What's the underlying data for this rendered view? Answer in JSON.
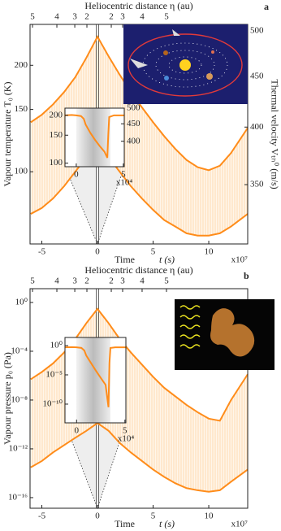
{
  "chart_data": [
    {
      "type": "line",
      "panel": "a",
      "x2label": "Heliocentric distance η (au)",
      "xlabel": "Time",
      "xlabel_unit": "t (s)",
      "xscale_label": "x10⁷",
      "ylabel": "Vapour temperature T₀ (K)",
      "y2label": "Thermal velocity Vₜₕ⁰ (m/s)",
      "xlim": [
        -6.06,
        13.5
      ],
      "xticks": [
        -5,
        0,
        5,
        10
      ],
      "x2ticks": [
        {
          "value": -5.84,
          "label": "5"
        },
        {
          "value": -3.65,
          "label": "4"
        },
        {
          "value": -2.04,
          "label": "3"
        },
        {
          "value": -0.95,
          "label": "2"
        },
        {
          "value": 1.24,
          "label": "2"
        },
        {
          "value": 2.26,
          "label": "3"
        },
        {
          "value": 4.01,
          "label": "4"
        },
        {
          "value": 6.2,
          "label": "5"
        }
      ],
      "ylog": true,
      "ylim": [
        62.5,
        261
      ],
      "yticks": [
        100,
        150,
        200
      ],
      "y2log": true,
      "y2lim": [
        305,
        507.6
      ],
      "y2ticks": [
        350,
        400,
        450,
        500
      ],
      "x": [
        -6,
        -5,
        -4,
        -3,
        -2,
        -1,
        0,
        1,
        2,
        3,
        4,
        5,
        6,
        7,
        8,
        9,
        10,
        11,
        12,
        13.5
      ],
      "series": [
        {
          "color": "#ff8c1a",
          "values": [
            138,
            145,
            155,
            168,
            185,
            210,
            241,
            212,
            188,
            168,
            152,
            138,
            126,
            116,
            108,
            103,
            101,
            104,
            113,
            133
          ]
        },
        {
          "color": "#ff8c1a",
          "values": [
            76,
            79,
            84,
            91,
            100,
            110,
            119,
            110,
            100,
            91,
            84,
            78,
            73,
            70,
            67,
            66,
            66,
            67,
            70,
            76
          ]
        }
      ]
    },
    {
      "type": "line",
      "inset": true,
      "xscale_label": "x10⁴",
      "xlim": [
        -1.2,
        5.1
      ],
      "xticks": [
        0,
        5
      ],
      "ylog": true,
      "ylim": [
        95,
        222
      ],
      "yticks": [
        100,
        150,
        200
      ],
      "y2log": true,
      "y2lim": [
        337,
        500
      ],
      "y2ticks": [
        400,
        450,
        500
      ],
      "x": [
        -1.2,
        -0.5,
        0,
        0.5,
        0.8,
        1,
        1.5,
        2,
        2.5,
        3,
        3.3,
        3.4,
        3.5,
        4,
        5.1
      ],
      "series": [
        {
          "color": "#ff8c1a",
          "values": [
            200,
            201,
            200,
            198,
            190,
            175,
            155,
            140,
            128,
            118,
            108,
            150,
            195,
            200,
            200
          ]
        }
      ]
    },
    {
      "type": "line",
      "panel": "b",
      "x2label": "Heliocentric distance η (au)",
      "xlabel": "Time",
      "xlabel_unit": "t (s)",
      "xscale_label": "x10⁷",
      "ylabel": "Vapour pressure p₀ (Pa)",
      "xlim": [
        -6.06,
        13.5
      ],
      "xticks": [
        -5,
        0,
        5,
        10
      ],
      "x2ticks": [
        {
          "value": -5.84,
          "label": "5"
        },
        {
          "value": -3.65,
          "label": "4"
        },
        {
          "value": -2.04,
          "label": "3"
        },
        {
          "value": -0.95,
          "label": "2"
        },
        {
          "value": 1.24,
          "label": "2"
        },
        {
          "value": 2.26,
          "label": "3"
        },
        {
          "value": 4.01,
          "label": "4"
        },
        {
          "value": 6.2,
          "label": "5"
        }
      ],
      "ylog": true,
      "ylim": [
        1.35e-17,
        13.5
      ],
      "yticks": [
        {
          "value": 1,
          "label": "10⁰"
        },
        {
          "value": 0.0001,
          "label": "10⁻⁴"
        },
        {
          "value": 1e-08,
          "label": "10⁻⁸"
        },
        {
          "value": 1e-12,
          "label": "10⁻¹²"
        },
        {
          "value": 1e-16,
          "label": "10⁻¹⁶"
        }
      ],
      "x": [
        -6,
        -5,
        -4,
        -3,
        -2,
        -1,
        0,
        1,
        2,
        3,
        4,
        5,
        6,
        7,
        8,
        9,
        10,
        11,
        12,
        13.5
      ],
      "series": [
        {
          "color": "#ff8c1a",
          "values": [
            5e-07,
            2e-06,
            1e-05,
            8e-05,
            0.001,
            0.02,
            0.3,
            0.02,
            0.001,
            8e-05,
            8e-06,
            8e-07,
            1e-07,
            2e-08,
            4e-09,
            1e-09,
            3e-10,
            2e-10,
            1e-08,
            1.3e-06
          ]
        },
        {
          "color": "#ff8c1a",
          "values": [
            3e-14,
            1e-13,
            5e-13,
            2e-12,
            8e-12,
            3e-11,
            1.3e-10,
            3e-11,
            3e-12,
            5e-13,
            1e-13,
            2e-14,
            5e-15,
            1.5e-15,
            6e-16,
            4e-16,
            3e-16,
            4e-16,
            2e-15,
            2e-14
          ]
        }
      ]
    },
    {
      "type": "line",
      "inset": true,
      "xscale_label": "x10⁴",
      "xlim": [
        -1.2,
        5.1
      ],
      "xticks": [
        0,
        5
      ],
      "ylog": true,
      "ylim": [
        6.3e-14,
        24.5
      ],
      "yticks": [
        {
          "value": 1,
          "label": "10⁰"
        },
        {
          "value": 1e-05,
          "label": "10⁻⁵"
        },
        {
          "value": 1e-10,
          "label": "10⁻¹⁰"
        }
      ],
      "x": [
        -1.2,
        -0.5,
        0,
        0.5,
        0.8,
        1,
        1.5,
        2,
        2.5,
        3,
        3.3,
        3.4,
        3.5,
        4,
        5.1
      ],
      "series": [
        {
          "color": "#ff8c1a",
          "values": [
            0.5,
            0.55,
            0.5,
            0.4,
            0.15,
            0.02,
            0.001,
            5e-05,
            3e-06,
            2e-07,
            3e-11,
            0.001,
            0.4,
            0.5,
            0.5
          ]
        }
      ]
    }
  ]
}
